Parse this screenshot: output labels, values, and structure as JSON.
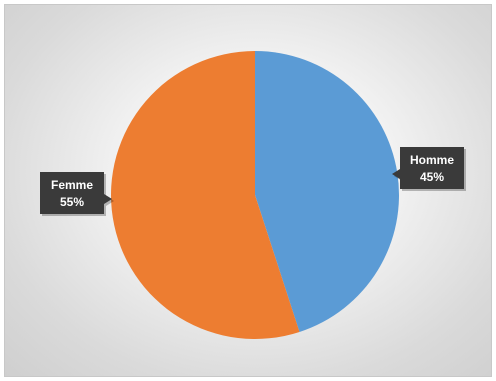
{
  "chart_data": {
    "type": "pie",
    "title": "",
    "categories": [
      "Homme",
      "Femme"
    ],
    "values": [
      45,
      55
    ],
    "labels": [
      {
        "category": "Homme",
        "value": "45%"
      },
      {
        "category": "Femme",
        "value": "55%"
      }
    ],
    "colors": [
      "#5b9bd5",
      "#ed7d31"
    ],
    "start_angle": "12 o'clock, clockwise",
    "data_label_style": "dark callout boxes",
    "legend": "none"
  }
}
